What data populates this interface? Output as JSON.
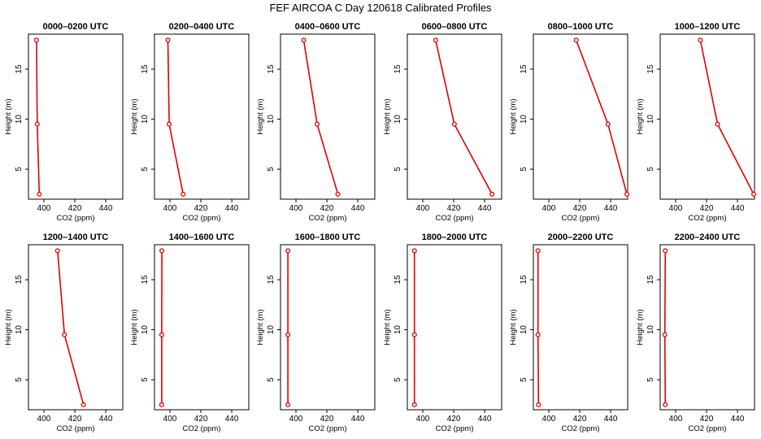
{
  "figure": {
    "title": "FEF AIRCOA C  Day 120618  Calibrated Profiles"
  },
  "chart_data": [
    {
      "type": "line",
      "title": "0000–0200 UTC",
      "xlabel": "CO2 (ppm)",
      "ylabel": "Height (m)",
      "xlim": [
        390,
        451
      ],
      "ylim": [
        2,
        18.5
      ],
      "xticks": [
        400,
        420,
        440
      ],
      "yticks": [
        5,
        10,
        15
      ],
      "color": "#e00000",
      "series": [
        {
          "x": [
            395.2,
            395.7,
            397.0
          ],
          "y": [
            17.9,
            9.5,
            2.5
          ]
        }
      ]
    },
    {
      "type": "line",
      "title": "0200–0400 UTC",
      "xlabel": "CO2 (ppm)",
      "ylabel": "Height (m)",
      "xlim": [
        390,
        451
      ],
      "ylim": [
        2,
        18.5
      ],
      "xticks": [
        400,
        420,
        440
      ],
      "yticks": [
        5,
        10,
        15
      ],
      "color": "#e00000",
      "series": [
        {
          "x": [
            398.7,
            399.5,
            408.5
          ],
          "y": [
            17.9,
            9.5,
            2.5
          ]
        }
      ]
    },
    {
      "type": "line",
      "title": "0400–0600 UTC",
      "xlabel": "CO2 (ppm)",
      "ylabel": "Height (m)",
      "xlim": [
        390,
        451
      ],
      "ylim": [
        2,
        18.5
      ],
      "xticks": [
        400,
        420,
        440
      ],
      "yticks": [
        5,
        10,
        15
      ],
      "color": "#e00000",
      "series": [
        {
          "x": [
            405.0,
            413.7,
            427.1
          ],
          "y": [
            17.9,
            9.5,
            2.5
          ]
        }
      ]
    },
    {
      "type": "line",
      "title": "0600–0800 UTC",
      "xlabel": "CO2 (ppm)",
      "ylabel": "Height (m)",
      "xlim": [
        390,
        451
      ],
      "ylim": [
        2,
        18.5
      ],
      "xticks": [
        400,
        420,
        440
      ],
      "yticks": [
        5,
        10,
        15
      ],
      "color": "#e00000",
      "series": [
        {
          "x": [
            408.3,
            420.4,
            444.8
          ],
          "y": [
            17.9,
            9.5,
            2.5
          ]
        }
      ]
    },
    {
      "type": "line",
      "title": "0800–1000 UTC",
      "xlabel": "CO2 (ppm)",
      "ylabel": "Height (m)",
      "xlim": [
        390,
        451
      ],
      "ylim": [
        2,
        18.5
      ],
      "xticks": [
        400,
        420,
        440
      ],
      "yticks": [
        5,
        10,
        15
      ],
      "color": "#e00000",
      "series": [
        {
          "x": [
            417.7,
            438.3,
            450.5
          ],
          "y": [
            17.9,
            9.5,
            2.5
          ]
        }
      ]
    },
    {
      "type": "line",
      "title": "1000–1200 UTC",
      "xlabel": "CO2 (ppm)",
      "ylabel": "Height (m)",
      "xlim": [
        390,
        451
      ],
      "ylim": [
        2,
        18.5
      ],
      "xticks": [
        400,
        420,
        440
      ],
      "yticks": [
        5,
        10,
        15
      ],
      "color": "#e00000",
      "series": [
        {
          "x": [
            416.0,
            427.1,
            450.5
          ],
          "y": [
            17.9,
            9.5,
            2.5
          ]
        }
      ]
    },
    {
      "type": "line",
      "title": "1200–1400 UTC",
      "xlabel": "CO2 (ppm)",
      "ylabel": "Height (m)",
      "xlim": [
        390,
        451
      ],
      "ylim": [
        2,
        18.5
      ],
      "xticks": [
        400,
        420,
        440
      ],
      "yticks": [
        5,
        10,
        15
      ],
      "color": "#e00000",
      "series": [
        {
          "x": [
            408.8,
            413.3,
            425.6
          ],
          "y": [
            17.9,
            9.5,
            2.5
          ]
        }
      ]
    },
    {
      "type": "line",
      "title": "1400–1600 UTC",
      "xlabel": "CO2 (ppm)",
      "ylabel": "Height (m)",
      "xlim": [
        390,
        451
      ],
      "ylim": [
        2,
        18.5
      ],
      "xticks": [
        400,
        420,
        440
      ],
      "yticks": [
        5,
        10,
        15
      ],
      "color": "#e00000",
      "series": [
        {
          "x": [
            394.8,
            394.7,
            394.7
          ],
          "y": [
            17.9,
            9.5,
            2.5
          ]
        }
      ]
    },
    {
      "type": "line",
      "title": "1600–1800 UTC",
      "xlabel": "CO2 (ppm)",
      "ylabel": "Height (m)",
      "xlim": [
        390,
        451
      ],
      "ylim": [
        2,
        18.5
      ],
      "xticks": [
        400,
        420,
        440
      ],
      "yticks": [
        5,
        10,
        15
      ],
      "color": "#e00000",
      "series": [
        {
          "x": [
            394.8,
            394.8,
            394.8
          ],
          "y": [
            17.9,
            9.5,
            2.5
          ]
        }
      ]
    },
    {
      "type": "line",
      "title": "1800–2000 UTC",
      "xlabel": "CO2 (ppm)",
      "ylabel": "Height (m)",
      "xlim": [
        390,
        451
      ],
      "ylim": [
        2,
        18.5
      ],
      "xticks": [
        400,
        420,
        440
      ],
      "yticks": [
        5,
        10,
        15
      ],
      "color": "#e00000",
      "series": [
        {
          "x": [
            394.6,
            394.6,
            394.6
          ],
          "y": [
            17.9,
            9.5,
            2.5
          ]
        }
      ]
    },
    {
      "type": "line",
      "title": "2000–2200 UTC",
      "xlabel": "CO2 (ppm)",
      "ylabel": "Height (m)",
      "xlim": [
        390,
        451
      ],
      "ylim": [
        2,
        18.5
      ],
      "xticks": [
        400,
        420,
        440
      ],
      "yticks": [
        5,
        10,
        15
      ],
      "color": "#e00000",
      "series": [
        {
          "x": [
            393.0,
            393.0,
            393.3
          ],
          "y": [
            17.9,
            9.5,
            2.5
          ]
        }
      ]
    },
    {
      "type": "line",
      "title": "2200–2400 UTC",
      "xlabel": "CO2 (ppm)",
      "ylabel": "Height (m)",
      "xlim": [
        390,
        451
      ],
      "ylim": [
        2,
        18.5
      ],
      "xticks": [
        400,
        420,
        440
      ],
      "yticks": [
        5,
        10,
        15
      ],
      "color": "#e00000",
      "series": [
        {
          "x": [
            393.3,
            393.0,
            393.3
          ],
          "y": [
            17.9,
            9.5,
            2.5
          ]
        }
      ]
    }
  ]
}
